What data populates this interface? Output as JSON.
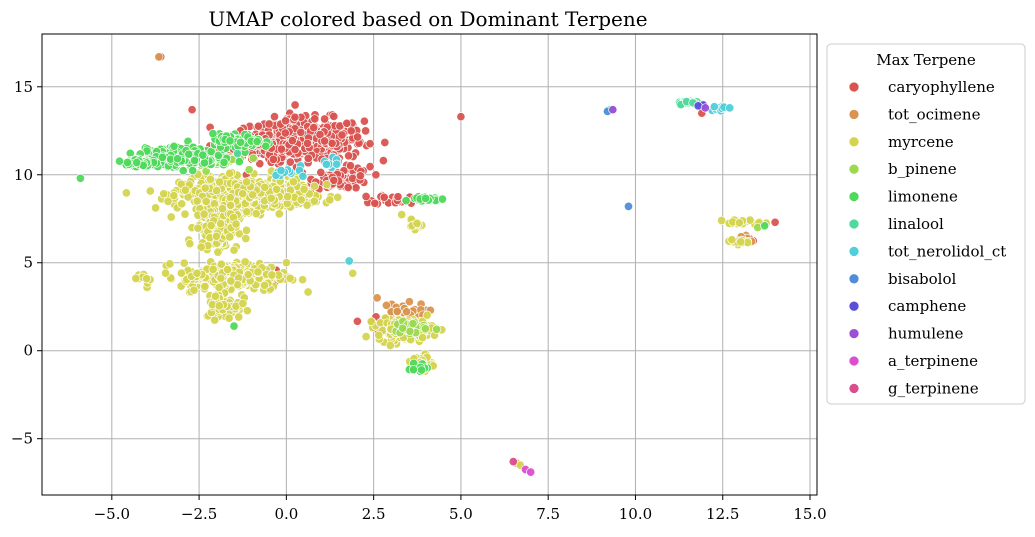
{
  "chart_data": {
    "type": "scatter",
    "title": "UMAP colored based on Dominant Terpene",
    "xlabel": "",
    "ylabel": "",
    "xlim": [
      -7.0,
      15.2
    ],
    "ylim": [
      -8.2,
      18.0
    ],
    "xticks": [
      -5.0,
      -2.5,
      0.0,
      2.5,
      5.0,
      7.5,
      10.0,
      12.5,
      15.0
    ],
    "xtick_labels": [
      "−5.0",
      "−2.5",
      "0.0",
      "2.5",
      "5.0",
      "7.5",
      "10.0",
      "12.5",
      "15.0"
    ],
    "yticks": [
      -5,
      0,
      5,
      10,
      15
    ],
    "ytick_labels": [
      "−5",
      "0",
      "5",
      "10",
      "15"
    ],
    "grid": true,
    "legend": {
      "title": "Max Terpene",
      "placement": "outside-right"
    },
    "series": [
      {
        "name": "caryophyllene",
        "color": "#d9534f",
        "clusters": [
          {
            "center": [
              0.6,
              12.0
            ],
            "spread": [
              1.6,
              1.2
            ],
            "n": 420
          },
          {
            "center": [
              1.6,
              9.8
            ],
            "spread": [
              0.8,
              0.6
            ],
            "n": 80
          },
          {
            "center": [
              -0.8,
              11.6
            ],
            "spread": [
              1.2,
              0.8
            ],
            "n": 120
          },
          {
            "center": [
              3.2,
              1.6
            ],
            "spread": [
              0.8,
              0.6
            ],
            "n": 70
          },
          {
            "center": [
              3.2,
              8.6
            ],
            "spread": [
              0.7,
              0.3
            ],
            "n": 30
          },
          {
            "center": [
              -0.6,
              4.3
            ],
            "spread": [
              0.6,
              0.5
            ],
            "n": 25
          },
          {
            "center": [
              13.2,
              6.3
            ],
            "spread": [
              0.3,
              0.2
            ],
            "n": 6
          }
        ],
        "points": [
          [
            -3.6,
            16.7
          ],
          [
            5.0,
            13.3
          ],
          [
            -2.7,
            13.7
          ],
          [
            11.9,
            13.5
          ],
          [
            14.0,
            7.3
          ]
        ]
      },
      {
        "name": "tot_ocimene",
        "color": "#d9954f",
        "clusters": [
          {
            "center": [
              3.3,
              2.2
            ],
            "spread": [
              0.7,
              0.5
            ],
            "n": 30
          },
          {
            "center": [
              13.1,
              6.4
            ],
            "spread": [
              0.3,
              0.2
            ],
            "n": 5
          }
        ],
        "points": [
          [
            -3.65,
            16.7
          ],
          [
            6.6,
            -6.4
          ],
          [
            2.6,
            3.0
          ]
        ]
      },
      {
        "name": "myrcene",
        "color": "#d4d44f",
        "clusters": [
          {
            "center": [
              -1.2,
              8.9
            ],
            "spread": [
              1.8,
              0.9
            ],
            "n": 600
          },
          {
            "center": [
              -2.0,
              7.0
            ],
            "spread": [
              0.6,
              1.2
            ],
            "n": 150
          },
          {
            "center": [
              -1.5,
              4.2
            ],
            "spread": [
              1.5,
              0.8
            ],
            "n": 260
          },
          {
            "center": [
              -1.8,
              2.6
            ],
            "spread": [
              0.5,
              0.8
            ],
            "n": 80
          },
          {
            "center": [
              3.4,
              1.2
            ],
            "spread": [
              0.8,
              0.6
            ],
            "n": 160
          },
          {
            "center": [
              3.9,
              -0.7
            ],
            "spread": [
              0.3,
              0.5
            ],
            "n": 40
          },
          {
            "center": [
              13.0,
              7.3
            ],
            "spread": [
              0.6,
              0.15
            ],
            "n": 20
          },
          {
            "center": [
              12.9,
              6.2
            ],
            "spread": [
              0.3,
              0.15
            ],
            "n": 12
          },
          {
            "center": [
              3.6,
              7.2
            ],
            "spread": [
              0.3,
              0.3
            ],
            "n": 15
          },
          {
            "center": [
              -4.0,
              4.1
            ],
            "spread": [
              0.3,
              0.2
            ],
            "n": 8
          }
        ],
        "points": [
          [
            6.7,
            -6.5
          ],
          [
            -3.3,
            7.6
          ],
          [
            0.8,
            8.5
          ],
          [
            1.9,
            4.4
          ]
        ]
      },
      {
        "name": "b_pinene",
        "color": "#9cd94f",
        "clusters": [
          {
            "center": [
              3.6,
              1.3
            ],
            "spread": [
              0.5,
              0.4
            ],
            "n": 20
          },
          {
            "center": [
              -2.2,
              10.8
            ],
            "spread": [
              1.0,
              0.4
            ],
            "n": 40
          }
        ],
        "points": [
          [
            13.5,
            7.0
          ],
          [
            3.9,
            -1.1
          ]
        ]
      },
      {
        "name": "limonene",
        "color": "#4fd95b",
        "clusters": [
          {
            "center": [
              -3.0,
              11.0
            ],
            "spread": [
              1.0,
              0.5
            ],
            "n": 380
          },
          {
            "center": [
              -4.3,
              10.7
            ],
            "spread": [
              0.4,
              0.25
            ],
            "n": 60
          },
          {
            "center": [
              -1.4,
              11.9
            ],
            "spread": [
              0.7,
              0.4
            ],
            "n": 90
          },
          {
            "center": [
              4.0,
              8.6
            ],
            "spread": [
              0.4,
              0.15
            ],
            "n": 25
          },
          {
            "center": [
              3.8,
              -1.0
            ],
            "spread": [
              0.3,
              0.3
            ],
            "n": 12
          }
        ],
        "points": [
          [
            -5.9,
            9.8
          ],
          [
            11.6,
            14.1
          ],
          [
            13.7,
            7.1
          ],
          [
            -1.5,
            1.4
          ]
        ]
      },
      {
        "name": "linalool",
        "color": "#4fd99c",
        "clusters": [
          {
            "center": [
              11.5,
              14.1
            ],
            "spread": [
              0.3,
              0.1
            ],
            "n": 15
          },
          {
            "center": [
              9.3,
              13.7
            ],
            "spread": [
              0.1,
              0.05
            ],
            "n": 4
          }
        ],
        "points": [
          [
            -1.4,
            11.2
          ]
        ]
      },
      {
        "name": "tot_nerolidol_ct",
        "color": "#4fcfd9",
        "clusters": [
          {
            "center": [
              12.4,
              13.8
            ],
            "spread": [
              0.3,
              0.12
            ],
            "n": 12
          },
          {
            "center": [
              1.4,
              10.8
            ],
            "spread": [
              0.3,
              0.3
            ],
            "n": 10
          },
          {
            "center": [
              0.2,
              10.1
            ],
            "spread": [
              0.5,
              0.3
            ],
            "n": 12
          }
        ],
        "points": [
          [
            1.8,
            5.1
          ],
          [
            12.7,
            13.8
          ]
        ]
      },
      {
        "name": "bisabolol",
        "color": "#4f8dd9",
        "clusters": [],
        "points": [
          [
            9.8,
            8.2
          ],
          [
            9.2,
            13.6
          ]
        ]
      },
      {
        "name": "camphene",
        "color": "#5b4fd9",
        "clusters": [
          {
            "center": [
              11.95,
              13.95
            ],
            "spread": [
              0.15,
              0.08
            ],
            "n": 5
          }
        ],
        "points": []
      },
      {
        "name": "humulene",
        "color": "#9c4fd9",
        "clusters": [],
        "points": [
          [
            9.35,
            13.7
          ],
          [
            12.0,
            13.8
          ]
        ]
      },
      {
        "name": "a_terpinene",
        "color": "#d94fcf",
        "clusters": [],
        "points": [
          [
            6.85,
            -6.75
          ],
          [
            7.0,
            -6.9
          ]
        ]
      },
      {
        "name": "g_terpinene",
        "color": "#d94f8d",
        "clusters": [],
        "points": [
          [
            6.5,
            -6.3
          ]
        ]
      }
    ]
  }
}
